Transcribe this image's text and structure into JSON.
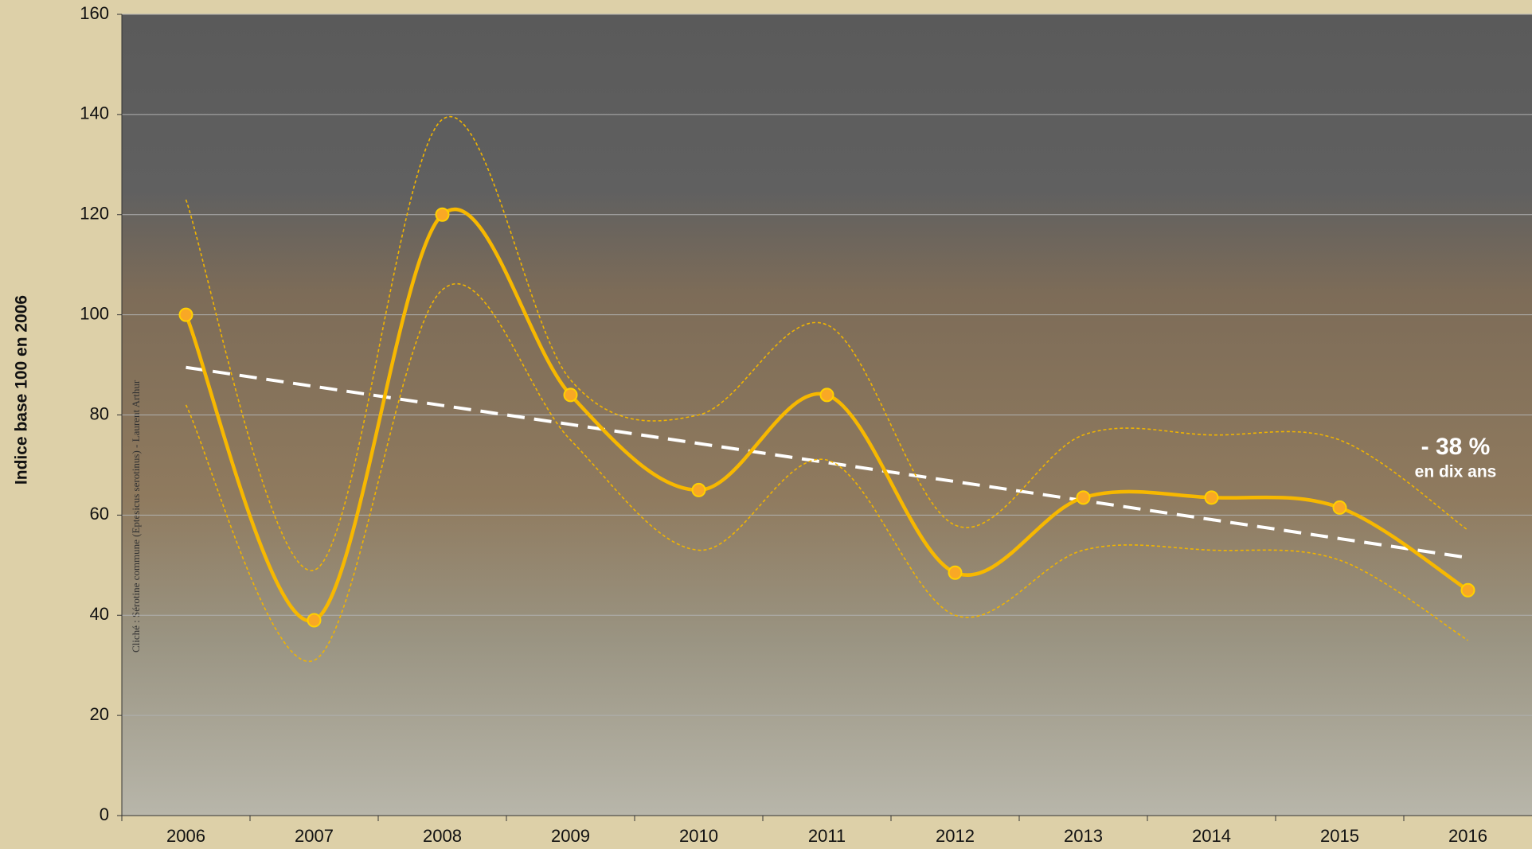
{
  "chart_data": {
    "type": "line",
    "y_label": "Indice base 100 en 2006",
    "categories": [
      "2006",
      "2007",
      "2008",
      "2009",
      "2010",
      "2011",
      "2012",
      "2013",
      "2014",
      "2015",
      "2016"
    ],
    "series": [
      {
        "color": "#f7b800",
        "style": "solid",
        "markers": true,
        "values": [
          100,
          39,
          120,
          84,
          65,
          84,
          48.5,
          63.5,
          63.5,
          61.5,
          45
        ]
      },
      {
        "color": "#f0b400",
        "style": "dashed",
        "markers": false,
        "values": [
          123,
          49,
          139,
          87,
          80,
          98,
          58,
          76,
          76,
          75,
          57
        ]
      },
      {
        "color": "#f0b400",
        "style": "dashed",
        "markers": false,
        "values": [
          82,
          31,
          105,
          75,
          53,
          71,
          40,
          53,
          53,
          51,
          35
        ]
      },
      {
        "color": "#ffffff",
        "style": "trend",
        "markers": false,
        "values": [
          89.5,
          85.7,
          81.9,
          78.1,
          74.3,
          70.5,
          66.7,
          62.9,
          59.1,
          55.3,
          51.5
        ]
      }
    ],
    "ylim": [
      0,
      160
    ],
    "yticks": [
      0,
      20,
      40,
      60,
      80,
      100,
      120,
      140,
      160
    ],
    "grid": true,
    "annotation": "- 38 %",
    "annotation_sub": "en dix ans",
    "credit": "Cliché : Sérotine commune (Eptesicus serotinus) - Laurent Arthur"
  }
}
